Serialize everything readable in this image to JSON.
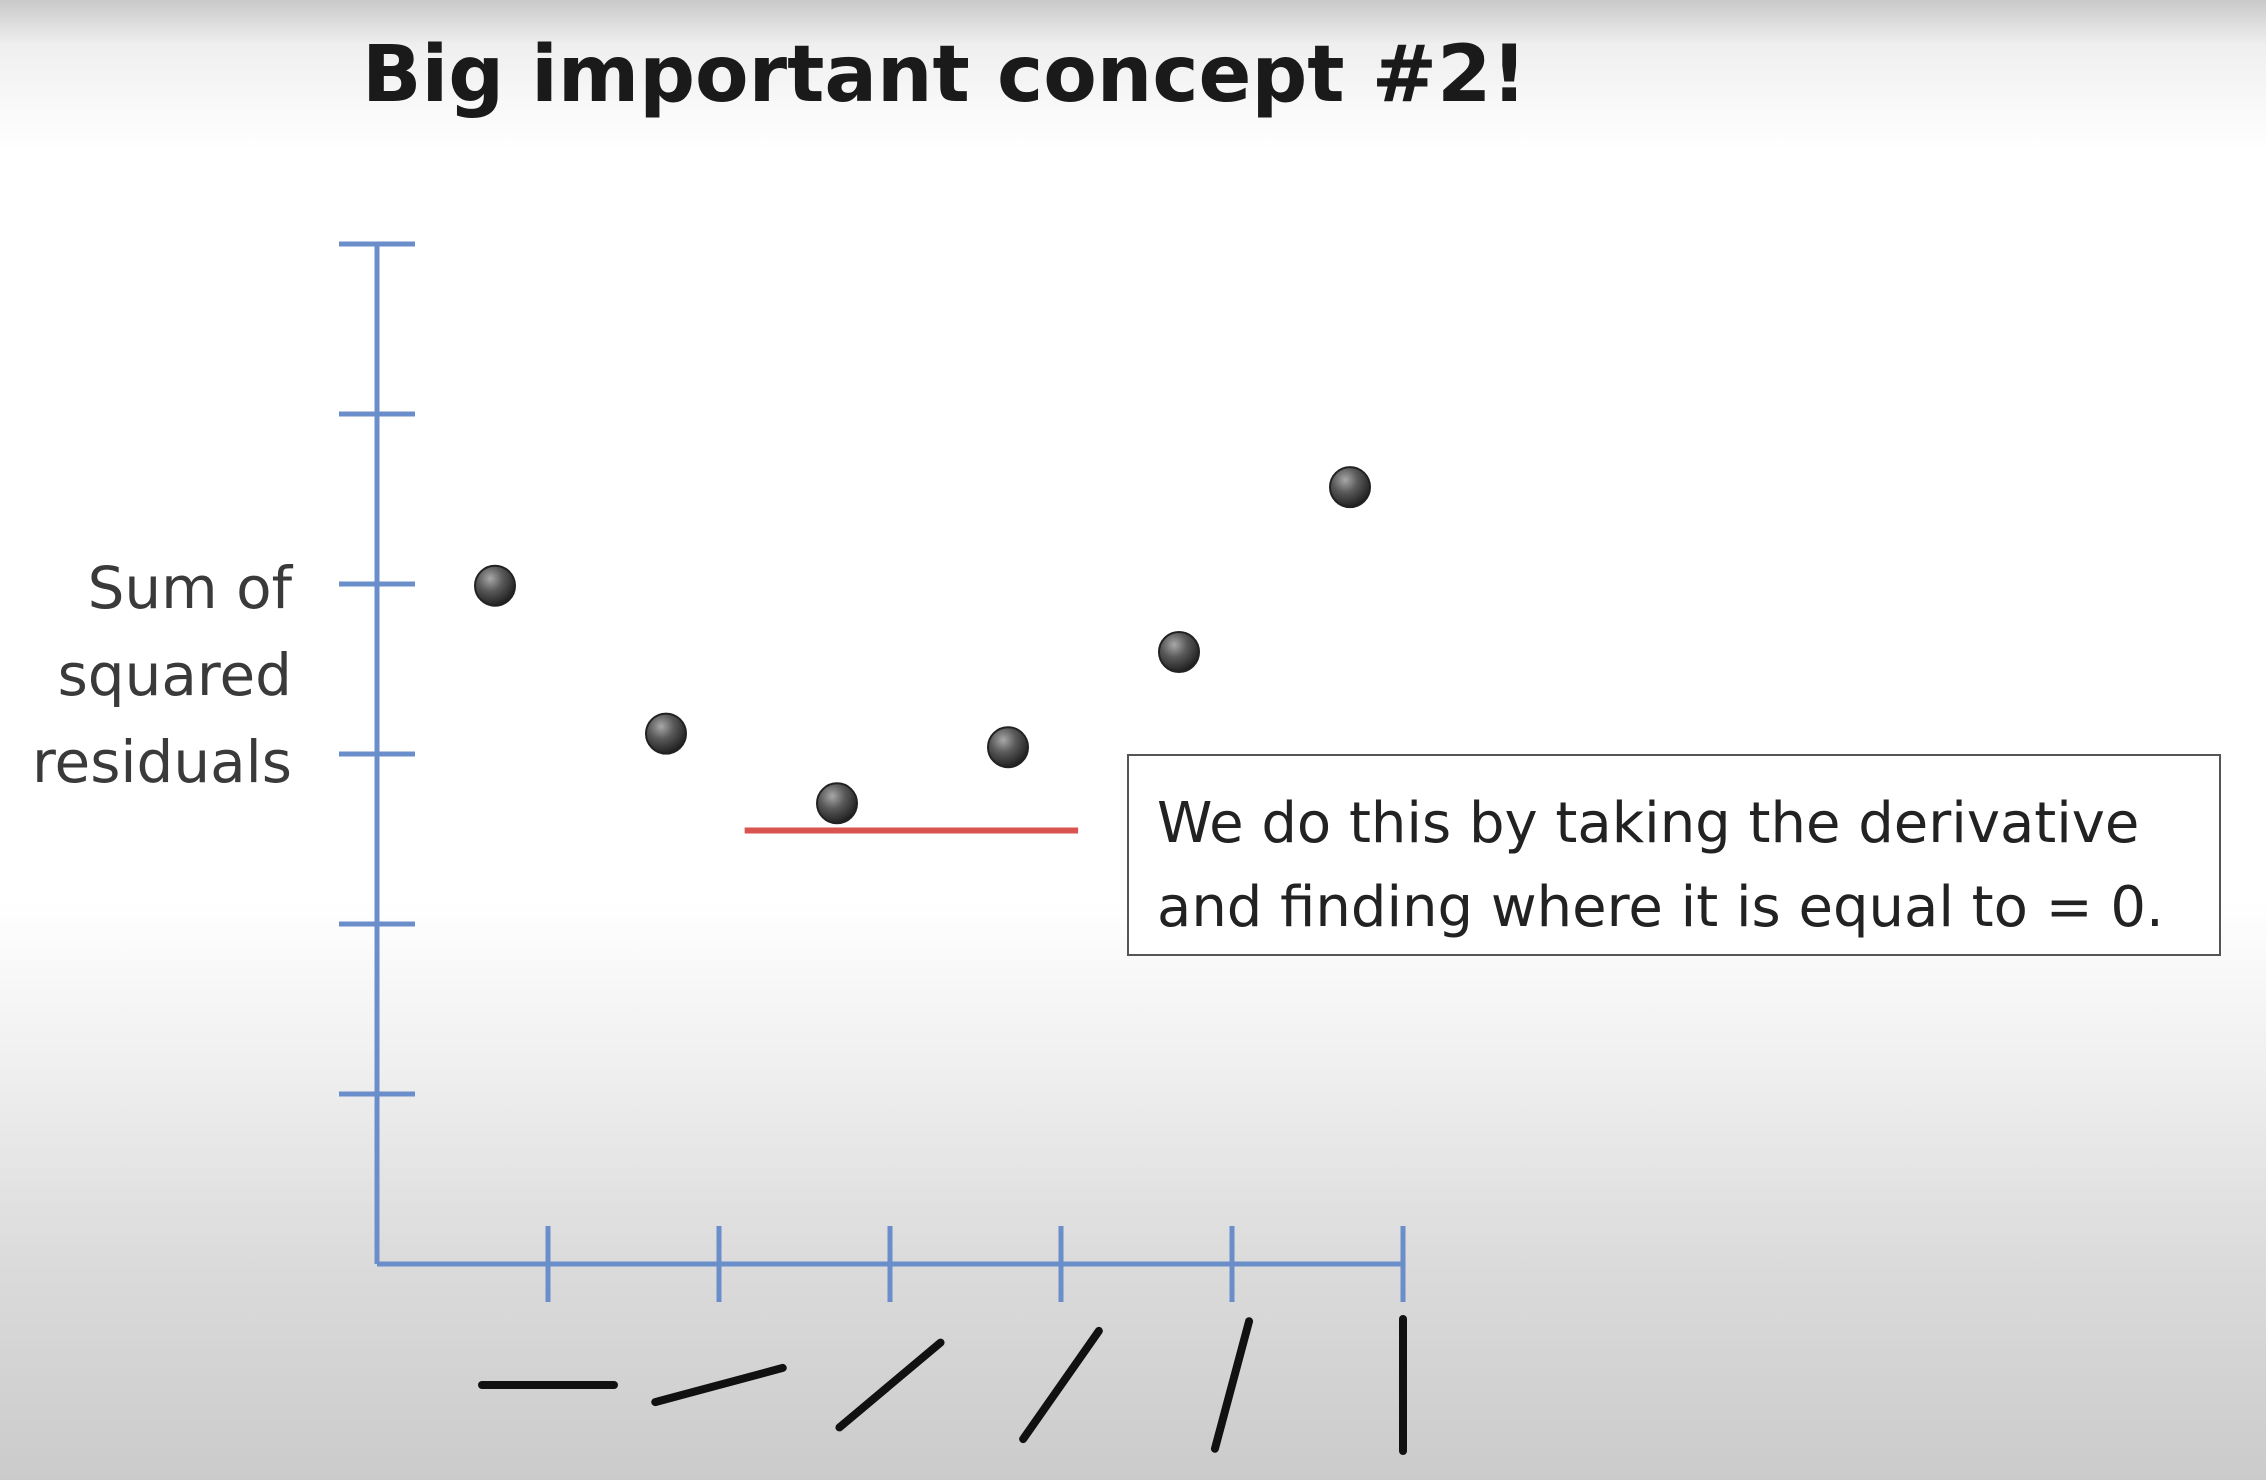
{
  "slide": {
    "title": "Big important concept #2!",
    "callout": {
      "line1": "We do this by taking the derivative",
      "line2": "and finding where it is equal to = 0."
    }
  },
  "chart_data": {
    "type": "scatter",
    "title": "Big important concept #2!",
    "ylabel": [
      "Sum of",
      "squared",
      "residuals"
    ],
    "xlabel": "",
    "x_categories": [
      "slope_0deg",
      "slope_15deg",
      "slope_40deg",
      "slope_55deg",
      "slope_75deg",
      "slope_90deg"
    ],
    "x_tick_glyphs_degrees": [
      0,
      15,
      40,
      55,
      75,
      90
    ],
    "y_ticks_count": 6,
    "ylim": [
      0,
      6
    ],
    "points": [
      {
        "x_index": 0,
        "y": 3.99
      },
      {
        "x_index": 1,
        "y": 3.12
      },
      {
        "x_index": 2,
        "y": 2.71
      },
      {
        "x_index": 3,
        "y": 3.04
      },
      {
        "x_index": 4,
        "y": 3.6
      },
      {
        "x_index": 5,
        "y": 4.57
      }
    ],
    "tangent_line": {
      "color": "#d9534f",
      "x_index_from": 1.15,
      "x_index_to": 3.1,
      "y": 2.55
    },
    "colors": {
      "axis": "#6a8ec9",
      "point": "#444444",
      "tangent": "#d9534f",
      "glyph": "#111111"
    },
    "grid": false,
    "legend": "none"
  }
}
